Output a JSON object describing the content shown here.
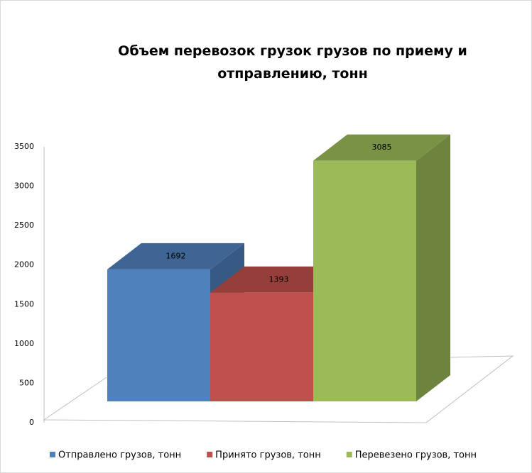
{
  "chart_data": {
    "type": "bar3d",
    "title": "Объем перевозок грузок грузов по приему и отправлению, тонн",
    "categories": [
      null
    ],
    "series": [
      {
        "name": "Отправлено грузов, тонн",
        "color": "#4f81bd",
        "values": [
          1692
        ]
      },
      {
        "name": "Принято грузов, тонн",
        "color": "#c0504d",
        "values": [
          1393
        ]
      },
      {
        "name": "Перевезено грузов, тонн",
        "color": "#9bbb59",
        "values": [
          3085
        ]
      }
    ],
    "ylim": [
      0,
      3500
    ],
    "yticks": [
      0,
      500,
      1000,
      1500,
      2000,
      2500,
      3000,
      3500
    ],
    "legend": "bottom"
  }
}
